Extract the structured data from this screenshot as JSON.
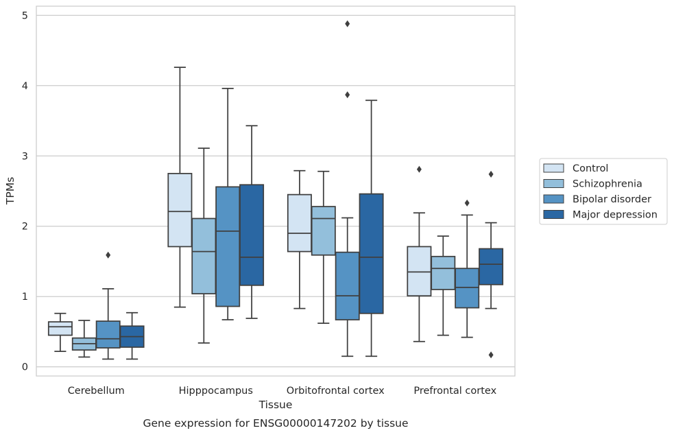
{
  "chart_data": {
    "type": "box",
    "title": "",
    "caption": "Gene expression for ENSG00000147202 by tissue",
    "xlabel": "Tissue",
    "ylabel": "TPMs",
    "ylim": [
      -0.13,
      5.13
    ],
    "yticks": [
      0,
      1,
      2,
      3,
      4,
      5
    ],
    "grid": "horizontal",
    "legend_position": "right",
    "categories": [
      "Cerebellum",
      "Hipppocampus",
      "Orbitofrontal cortex",
      "Prefrontal cortex"
    ],
    "series": [
      {
        "name": "Control",
        "color": "#d3e4f3",
        "boxes": [
          {
            "whislo": 0.22,
            "q1": 0.45,
            "med": 0.57,
            "q3": 0.64,
            "whishi": 0.76,
            "fliers": []
          },
          {
            "whislo": 0.85,
            "q1": 1.71,
            "med": 2.21,
            "q3": 2.75,
            "whishi": 4.26,
            "fliers": []
          },
          {
            "whislo": 0.83,
            "q1": 1.64,
            "med": 1.9,
            "q3": 2.45,
            "whishi": 2.79,
            "fliers": []
          },
          {
            "whislo": 0.36,
            "q1": 1.01,
            "med": 1.35,
            "q3": 1.71,
            "whishi": 2.19,
            "fliers": [
              2.81
            ]
          }
        ]
      },
      {
        "name": "Schizophrenia",
        "color": "#93bfdb",
        "boxes": [
          {
            "whislo": 0.14,
            "q1": 0.24,
            "med": 0.33,
            "q3": 0.41,
            "whishi": 0.66,
            "fliers": []
          },
          {
            "whislo": 0.34,
            "q1": 1.04,
            "med": 1.64,
            "q3": 2.11,
            "whishi": 3.11,
            "fliers": []
          },
          {
            "whislo": 0.62,
            "q1": 1.59,
            "med": 2.11,
            "q3": 2.28,
            "whishi": 2.78,
            "fliers": []
          },
          {
            "whislo": 0.45,
            "q1": 1.1,
            "med": 1.4,
            "q3": 1.57,
            "whishi": 1.86,
            "fliers": []
          }
        ]
      },
      {
        "name": "Bipolar disorder",
        "color": "#5593c4",
        "boxes": [
          {
            "whislo": 0.11,
            "q1": 0.27,
            "med": 0.4,
            "q3": 0.65,
            "whishi": 1.11,
            "fliers": [
              1.59
            ]
          },
          {
            "whislo": 0.67,
            "q1": 0.86,
            "med": 1.93,
            "q3": 2.56,
            "whishi": 3.96,
            "fliers": []
          },
          {
            "whislo": 0.15,
            "q1": 0.67,
            "med": 1.01,
            "q3": 1.63,
            "whishi": 2.12,
            "fliers": [
              3.87,
              4.88
            ]
          },
          {
            "whislo": 0.42,
            "q1": 0.84,
            "med": 1.13,
            "q3": 1.4,
            "whishi": 2.16,
            "fliers": [
              2.33
            ]
          }
        ]
      },
      {
        "name": "Major depression",
        "color": "#2a67a3",
        "boxes": [
          {
            "whislo": 0.11,
            "q1": 0.28,
            "med": 0.43,
            "q3": 0.58,
            "whishi": 0.77,
            "fliers": []
          },
          {
            "whislo": 0.69,
            "q1": 1.16,
            "med": 1.56,
            "q3": 2.59,
            "whishi": 3.43,
            "fliers": []
          },
          {
            "whislo": 0.15,
            "q1": 0.76,
            "med": 1.56,
            "q3": 2.46,
            "whishi": 3.79,
            "fliers": []
          },
          {
            "whislo": 0.83,
            "q1": 1.17,
            "med": 1.46,
            "q3": 1.68,
            "whishi": 2.05,
            "fliers": [
              0.17,
              2.74
            ]
          }
        ]
      }
    ]
  }
}
